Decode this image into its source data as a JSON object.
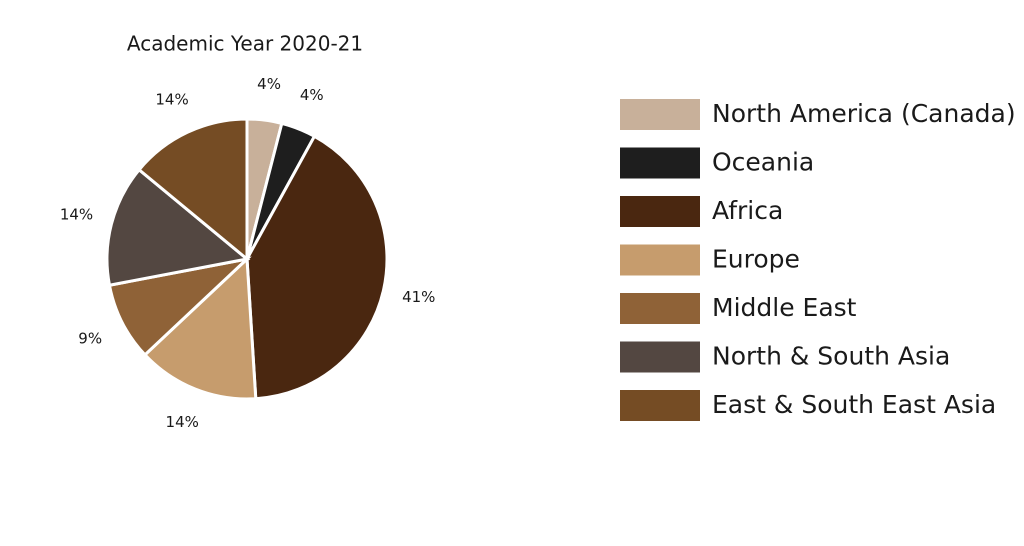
{
  "chart_data": {
    "type": "pie",
    "title": "Academic Year 2020-21",
    "series": [
      {
        "name": "North America (Canada)",
        "color": "#c8b09a",
        "values": [
          4
        ],
        "value_labels": [
          "4%"
        ]
      },
      {
        "name": "Oceania",
        "color": "#1e1e1e",
        "values": [
          4
        ],
        "value_labels": [
          "4%"
        ]
      },
      {
        "name": "Africa",
        "color": "#4a2710",
        "values": [
          41
        ],
        "value_labels": [
          "41%"
        ]
      },
      {
        "name": "Europe",
        "color": "#c69c6d",
        "values": [
          14
        ],
        "value_labels": [
          "14%"
        ]
      },
      {
        "name": "Middle East",
        "color": "#8f6237",
        "values": [
          9
        ],
        "value_labels": [
          "9%"
        ]
      },
      {
        "name": "North & South Asia",
        "color": "#534741",
        "values": [
          14
        ],
        "value_labels": [
          "14%"
        ]
      },
      {
        "name": "East & South East Asia",
        "color": "#754c24",
        "values": [
          14
        ],
        "value_labels": [
          "14%"
        ]
      }
    ]
  }
}
